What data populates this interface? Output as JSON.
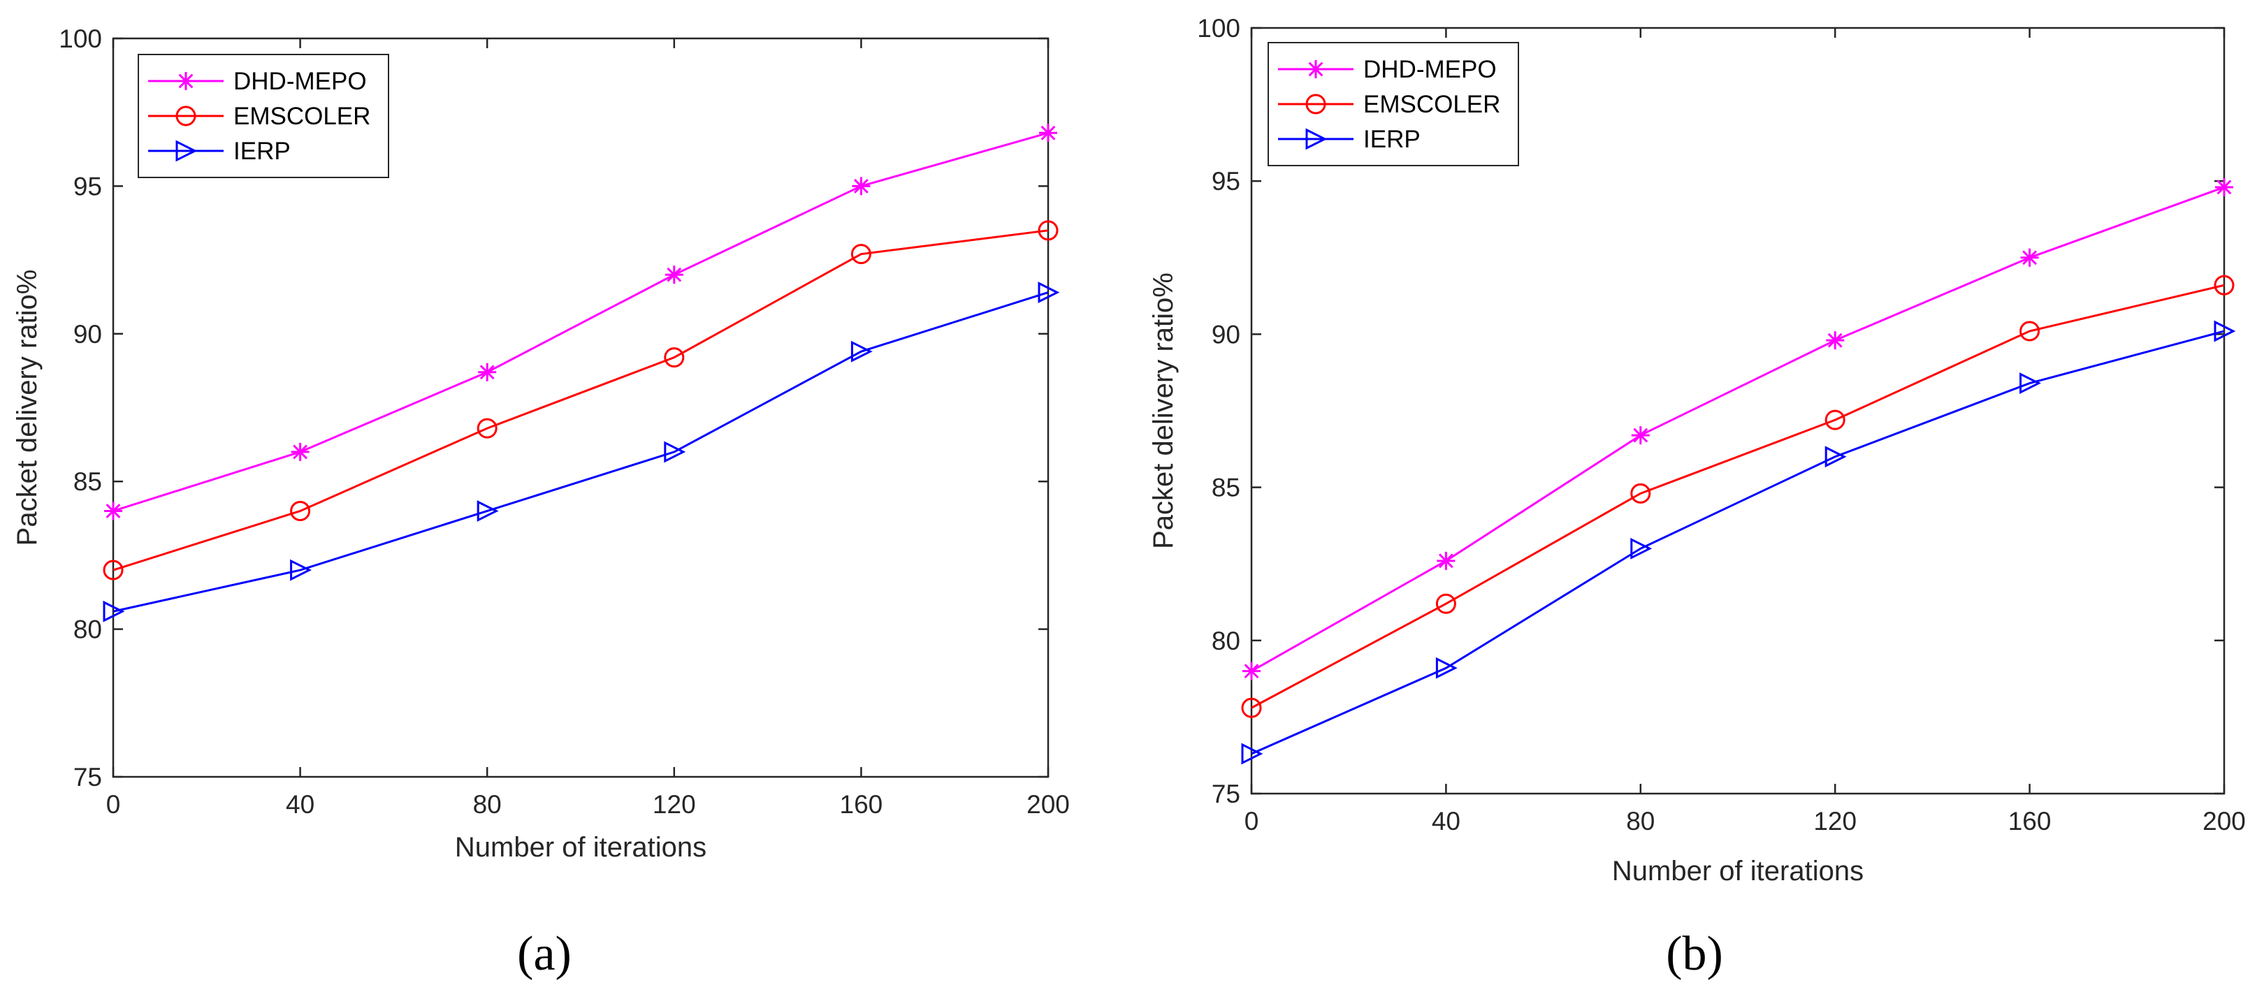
{
  "chart_data": [
    {
      "type": "line",
      "panel_label": "(a)",
      "xlabel": "Number of iterations",
      "ylabel": "Packet delivery ratio%",
      "x": [
        0,
        40,
        80,
        120,
        160,
        200
      ],
      "xticks": [
        "0",
        "40",
        "80",
        "120",
        "160",
        "200"
      ],
      "xlim": [
        0,
        200
      ],
      "yticks": [
        "75",
        "80",
        "85",
        "90",
        "95",
        "100"
      ],
      "ylim": [
        75,
        100
      ],
      "grid": false,
      "legend_position": "top-left",
      "series": [
        {
          "name": "DHD-MEPO",
          "color": "#ff00ff",
          "marker": "asterisk",
          "values": [
            84,
            86,
            88.7,
            92,
            95,
            96.8
          ]
        },
        {
          "name": "EMSCOLER",
          "color": "#ff0000",
          "marker": "circle",
          "values": [
            82,
            84,
            86.8,
            89.2,
            92.7,
            93.5
          ]
        },
        {
          "name": "IERP",
          "color": "#0000ff",
          "marker": "triangle-right",
          "values": [
            80.6,
            82,
            84,
            86,
            89.4,
            91.4
          ]
        }
      ]
    },
    {
      "type": "line",
      "panel_label": "(b)",
      "xlabel": "Number of iterations",
      "ylabel": "Packet delivery ratio%",
      "x": [
        0,
        40,
        80,
        120,
        160,
        200
      ],
      "xticks": [
        "0",
        "40",
        "80",
        "120",
        "160",
        "200"
      ],
      "xlim": [
        0,
        200
      ],
      "yticks": [
        "75",
        "80",
        "85",
        "90",
        "95",
        "100"
      ],
      "ylim": [
        75,
        100
      ],
      "grid": false,
      "legend_position": "top-left",
      "series": [
        {
          "name": "DHD-MEPO",
          "color": "#ff00ff",
          "marker": "asterisk",
          "values": [
            79,
            82.6,
            86.7,
            89.8,
            92.5,
            94.8
          ]
        },
        {
          "name": "EMSCOLER",
          "color": "#ff0000",
          "marker": "circle",
          "values": [
            77.8,
            81.2,
            84.8,
            87.2,
            90.1,
            91.6
          ]
        },
        {
          "name": "IERP",
          "color": "#0000ff",
          "marker": "triangle-right",
          "values": [
            76.3,
            79.1,
            83,
            86,
            88.4,
            90.1
          ]
        }
      ]
    }
  ]
}
